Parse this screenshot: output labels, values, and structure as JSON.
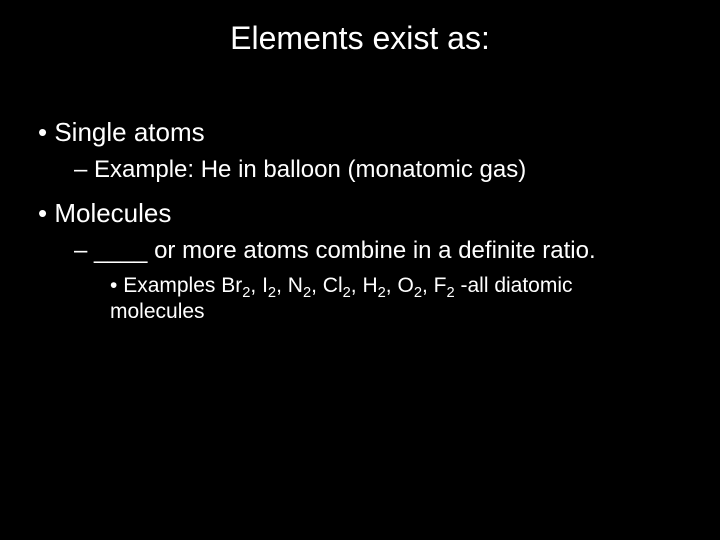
{
  "colors": {
    "background": "#000000",
    "text": "#ffffff"
  },
  "typography": {
    "family": "Arial",
    "title_fontsize": 32,
    "l1_fontsize": 26,
    "l2_fontsize": 24,
    "l3_fontsize": 21
  },
  "title": "Elements exist as:",
  "items": {
    "single_atoms": {
      "label": "Single atoms",
      "example": "Example:  He in balloon (monatomic gas)"
    },
    "molecules": {
      "label": "Molecules",
      "definition": "____ or more atoms combine in a definite ratio.",
      "examples_prefix": "Examples  Br",
      "formula_sub": "2",
      "sep1": ", I",
      "sep2": ", N",
      "sep3": ", Cl",
      "sep4": ", H",
      "sep5": ", O",
      "sep6": ", F",
      "examples_suffix": "  -all diatomic molecules"
    }
  }
}
